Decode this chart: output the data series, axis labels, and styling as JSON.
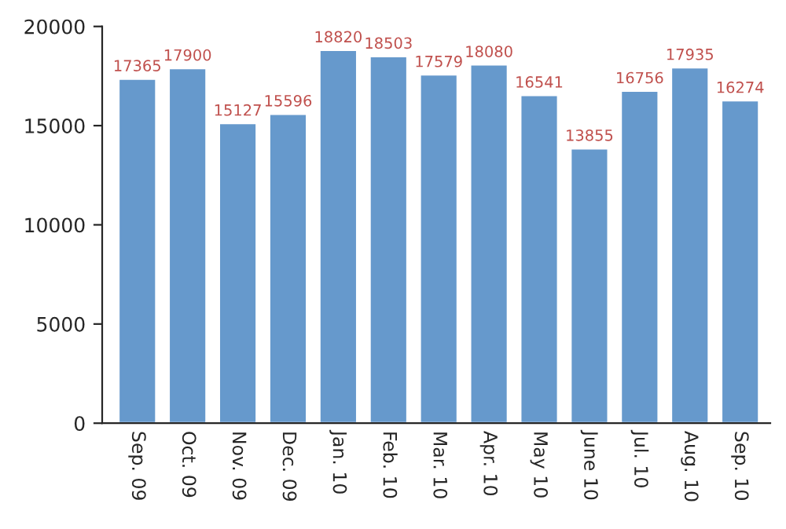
{
  "chart_data": {
    "type": "bar",
    "categories": [
      "Sep. 09",
      "Oct. 09",
      "Nov. 09",
      "Dec. 09",
      "Jan. 10",
      "Feb. 10",
      "Mar. 10",
      "Apr. 10",
      "May 10",
      "June 10",
      "Jul. 10",
      "Aug. 10",
      "Sep. 10"
    ],
    "values": [
      17365,
      17900,
      15127,
      15596,
      18820,
      18503,
      17579,
      18080,
      16541,
      13855,
      16756,
      17935,
      16274
    ],
    "color": "#6699cc",
    "ylim": [
      0,
      20000
    ],
    "yticks": [
      0,
      5000,
      10000,
      15000,
      20000
    ],
    "data_labels": true,
    "grid": false,
    "legend": false
  }
}
